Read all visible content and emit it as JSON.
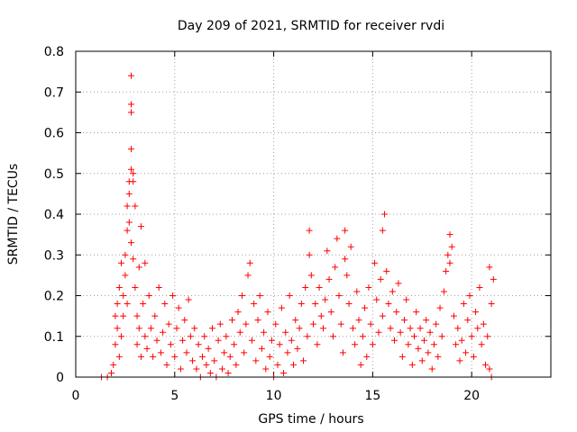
{
  "chart_data": {
    "type": "scatter",
    "title": "Day 209 of 2021, SRMTID for receiver rvdi",
    "xlabel": "GPS time / hours",
    "ylabel": "SRMTID / TECUs",
    "xlim": [
      0,
      24
    ],
    "ylim": [
      0,
      0.8
    ],
    "xticks": [
      0,
      5,
      10,
      15,
      20
    ],
    "yticks": [
      0,
      0.1,
      0.2,
      0.3,
      0.4,
      0.5,
      0.6,
      0.7,
      0.8
    ],
    "xtick_labels": [
      "0",
      "5",
      "10",
      "15",
      "20"
    ],
    "ytick_labels": [
      "0",
      "0.1",
      "0.2",
      "0.3",
      "0.4",
      "0.5",
      "0.6",
      "0.7",
      "0.8"
    ],
    "grid": true,
    "marker": "+",
    "color": "#ff0000",
    "series": [
      {
        "name": "SRMTID",
        "points": [
          [
            1.3,
            0.0
          ],
          [
            1.6,
            0.0
          ],
          [
            1.8,
            0.01
          ],
          [
            1.9,
            0.03
          ],
          [
            2.0,
            0.08
          ],
          [
            2.0,
            0.15
          ],
          [
            2.1,
            0.12
          ],
          [
            2.1,
            0.18
          ],
          [
            2.2,
            0.05
          ],
          [
            2.2,
            0.22
          ],
          [
            2.3,
            0.1
          ],
          [
            2.3,
            0.28
          ],
          [
            2.4,
            0.2
          ],
          [
            2.4,
            0.15
          ],
          [
            2.5,
            0.3
          ],
          [
            2.5,
            0.25
          ],
          [
            2.6,
            0.18
          ],
          [
            2.6,
            0.36
          ],
          [
            2.6,
            0.42
          ],
          [
            2.7,
            0.48
          ],
          [
            2.7,
            0.45
          ],
          [
            2.7,
            0.38
          ],
          [
            2.8,
            0.51
          ],
          [
            2.8,
            0.56
          ],
          [
            2.8,
            0.65
          ],
          [
            2.8,
            0.67
          ],
          [
            2.8,
            0.74
          ],
          [
            2.8,
            0.33
          ],
          [
            2.9,
            0.29
          ],
          [
            2.9,
            0.5
          ],
          [
            2.9,
            0.48
          ],
          [
            3.0,
            0.42
          ],
          [
            3.0,
            0.22
          ],
          [
            3.1,
            0.15
          ],
          [
            3.1,
            0.08
          ],
          [
            3.2,
            0.27
          ],
          [
            3.2,
            0.12
          ],
          [
            3.3,
            0.37
          ],
          [
            3.3,
            0.05
          ],
          [
            3.4,
            0.18
          ],
          [
            3.5,
            0.1
          ],
          [
            3.5,
            0.28
          ],
          [
            3.6,
            0.07
          ],
          [
            3.7,
            0.2
          ],
          [
            3.8,
            0.12
          ],
          [
            3.9,
            0.05
          ],
          [
            4.0,
            0.15
          ],
          [
            4.1,
            0.09
          ],
          [
            4.2,
            0.22
          ],
          [
            4.3,
            0.06
          ],
          [
            4.4,
            0.11
          ],
          [
            4.5,
            0.18
          ],
          [
            4.6,
            0.03
          ],
          [
            4.7,
            0.13
          ],
          [
            4.8,
            0.08
          ],
          [
            4.9,
            0.2
          ],
          [
            5.0,
            0.05
          ],
          [
            5.1,
            0.12
          ],
          [
            5.2,
            0.17
          ],
          [
            5.3,
            0.02
          ],
          [
            5.4,
            0.09
          ],
          [
            5.5,
            0.14
          ],
          [
            5.6,
            0.06
          ],
          [
            5.7,
            0.19
          ],
          [
            5.8,
            0.1
          ],
          [
            5.9,
            0.04
          ],
          [
            6.0,
            0.12
          ],
          [
            6.1,
            0.02
          ],
          [
            6.2,
            0.08
          ],
          [
            6.3,
            0.0
          ],
          [
            6.4,
            0.05
          ],
          [
            6.5,
            0.1
          ],
          [
            6.6,
            0.03
          ],
          [
            6.7,
            0.07
          ],
          [
            6.8,
            0.01
          ],
          [
            6.9,
            0.12
          ],
          [
            7.0,
            0.04
          ],
          [
            7.1,
            0.0
          ],
          [
            7.2,
            0.09
          ],
          [
            7.3,
            0.13
          ],
          [
            7.4,
            0.02
          ],
          [
            7.5,
            0.06
          ],
          [
            7.6,
            0.1
          ],
          [
            7.7,
            0.01
          ],
          [
            7.8,
            0.05
          ],
          [
            7.9,
            0.14
          ],
          [
            8.0,
            0.08
          ],
          [
            8.1,
            0.03
          ],
          [
            8.2,
            0.16
          ],
          [
            8.3,
            0.11
          ],
          [
            8.4,
            0.2
          ],
          [
            8.5,
            0.06
          ],
          [
            8.6,
            0.13
          ],
          [
            8.7,
            0.25
          ],
          [
            8.8,
            0.28
          ],
          [
            8.9,
            0.09
          ],
          [
            9.0,
            0.18
          ],
          [
            9.1,
            0.04
          ],
          [
            9.2,
            0.14
          ],
          [
            9.3,
            0.2
          ],
          [
            9.4,
            0.07
          ],
          [
            9.5,
            0.11
          ],
          [
            9.6,
            0.02
          ],
          [
            9.7,
            0.16
          ],
          [
            9.8,
            0.05
          ],
          [
            9.9,
            0.09
          ],
          [
            10.0,
            0.0
          ],
          [
            10.1,
            0.13
          ],
          [
            10.2,
            0.03
          ],
          [
            10.3,
            0.08
          ],
          [
            10.4,
            0.17
          ],
          [
            10.5,
            0.01
          ],
          [
            10.6,
            0.11
          ],
          [
            10.7,
            0.06
          ],
          [
            10.8,
            0.2
          ],
          [
            10.9,
            0.09
          ],
          [
            11.0,
            0.03
          ],
          [
            11.1,
            0.14
          ],
          [
            11.2,
            0.07
          ],
          [
            11.3,
            0.12
          ],
          [
            11.4,
            0.18
          ],
          [
            11.5,
            0.04
          ],
          [
            11.6,
            0.22
          ],
          [
            11.7,
            0.1
          ],
          [
            11.8,
            0.3
          ],
          [
            11.8,
            0.36
          ],
          [
            11.9,
            0.25
          ],
          [
            12.0,
            0.13
          ],
          [
            12.1,
            0.18
          ],
          [
            12.2,
            0.08
          ],
          [
            12.3,
            0.22
          ],
          [
            12.4,
            0.15
          ],
          [
            12.5,
            0.12
          ],
          [
            12.6,
            0.19
          ],
          [
            12.7,
            0.31
          ],
          [
            12.8,
            0.24
          ],
          [
            12.9,
            0.16
          ],
          [
            13.0,
            0.1
          ],
          [
            13.1,
            0.27
          ],
          [
            13.2,
            0.34
          ],
          [
            13.3,
            0.2
          ],
          [
            13.4,
            0.13
          ],
          [
            13.5,
            0.06
          ],
          [
            13.6,
            0.29
          ],
          [
            13.6,
            0.36
          ],
          [
            13.7,
            0.25
          ],
          [
            13.8,
            0.18
          ],
          [
            13.9,
            0.32
          ],
          [
            14.0,
            0.12
          ],
          [
            14.1,
            0.08
          ],
          [
            14.2,
            0.21
          ],
          [
            14.3,
            0.14
          ],
          [
            14.4,
            0.03
          ],
          [
            14.5,
            0.1
          ],
          [
            14.6,
            0.17
          ],
          [
            14.7,
            0.05
          ],
          [
            14.8,
            0.22
          ],
          [
            14.9,
            0.13
          ],
          [
            15.0,
            0.08
          ],
          [
            15.1,
            0.28
          ],
          [
            15.2,
            0.19
          ],
          [
            15.3,
            0.11
          ],
          [
            15.4,
            0.24
          ],
          [
            15.5,
            0.15
          ],
          [
            15.5,
            0.36
          ],
          [
            15.6,
            0.4
          ],
          [
            15.7,
            0.26
          ],
          [
            15.8,
            0.18
          ],
          [
            15.9,
            0.12
          ],
          [
            16.0,
            0.21
          ],
          [
            16.1,
            0.09
          ],
          [
            16.2,
            0.16
          ],
          [
            16.3,
            0.23
          ],
          [
            16.4,
            0.11
          ],
          [
            16.5,
            0.05
          ],
          [
            16.6,
            0.14
          ],
          [
            16.7,
            0.19
          ],
          [
            16.8,
            0.08
          ],
          [
            16.9,
            0.12
          ],
          [
            17.0,
            0.03
          ],
          [
            17.1,
            0.1
          ],
          [
            17.2,
            0.16
          ],
          [
            17.3,
            0.07
          ],
          [
            17.4,
            0.12
          ],
          [
            17.5,
            0.04
          ],
          [
            17.6,
            0.09
          ],
          [
            17.7,
            0.14
          ],
          [
            17.8,
            0.06
          ],
          [
            17.9,
            0.11
          ],
          [
            18.0,
            0.02
          ],
          [
            18.1,
            0.08
          ],
          [
            18.2,
            0.13
          ],
          [
            18.3,
            0.05
          ],
          [
            18.4,
            0.17
          ],
          [
            18.5,
            0.1
          ],
          [
            18.6,
            0.21
          ],
          [
            18.7,
            0.26
          ],
          [
            18.8,
            0.3
          ],
          [
            18.9,
            0.35
          ],
          [
            18.9,
            0.28
          ],
          [
            19.0,
            0.32
          ],
          [
            19.1,
            0.15
          ],
          [
            19.2,
            0.08
          ],
          [
            19.3,
            0.12
          ],
          [
            19.4,
            0.04
          ],
          [
            19.5,
            0.09
          ],
          [
            19.6,
            0.18
          ],
          [
            19.7,
            0.06
          ],
          [
            19.8,
            0.14
          ],
          [
            19.9,
            0.2
          ],
          [
            20.0,
            0.1
          ],
          [
            20.1,
            0.05
          ],
          [
            20.2,
            0.16
          ],
          [
            20.3,
            0.12
          ],
          [
            20.4,
            0.22
          ],
          [
            20.5,
            0.08
          ],
          [
            20.6,
            0.13
          ],
          [
            20.7,
            0.03
          ],
          [
            20.8,
            0.1
          ],
          [
            20.9,
            0.27
          ],
          [
            20.9,
            0.02
          ],
          [
            21.0,
            0.0
          ],
          [
            21.0,
            0.18
          ],
          [
            21.1,
            0.24
          ]
        ]
      }
    ]
  }
}
